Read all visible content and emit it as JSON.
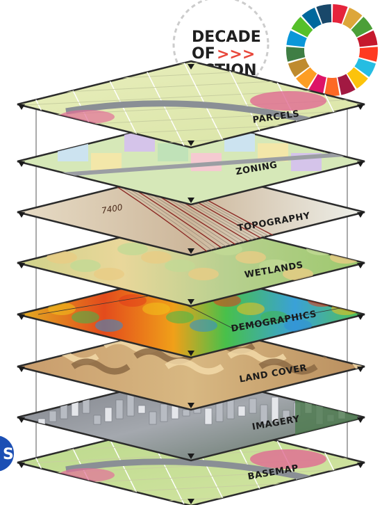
{
  "logo": {
    "line1": "DECADE",
    "line2": "OF",
    "line3": "ACTION",
    "arrows": ">>>",
    "arrow_color": "#e8473a"
  },
  "sdg_wheel": {
    "colors": [
      "#e5243b",
      "#dda63a",
      "#4c9f38",
      "#c5192d",
      "#ff3a21",
      "#26bde2",
      "#fcc30b",
      "#a21942",
      "#fd6925",
      "#dd1367",
      "#fd9d24",
      "#bf8b2e",
      "#3f7e44",
      "#0a97d9",
      "#56c02b",
      "#00689d",
      "#19486a"
    ]
  },
  "layers": [
    {
      "label": "PARCELS",
      "icon": "parcels-map"
    },
    {
      "label": "ZONING",
      "icon": "zoning-map"
    },
    {
      "label": "TOPOGRAPHY",
      "icon": "contour-map",
      "annotation": "7400"
    },
    {
      "label": "WETLANDS",
      "icon": "elevation-map"
    },
    {
      "label": "DEMOGRAPHICS",
      "icon": "heat-map"
    },
    {
      "label": "LAND COVER",
      "icon": "landcover-map"
    },
    {
      "label": "IMAGERY",
      "icon": "city-imagery"
    },
    {
      "label": "BASEMAP",
      "icon": "base-map"
    }
  ],
  "side_badge": {
    "text": "S",
    "color": "#1c4fb4"
  }
}
